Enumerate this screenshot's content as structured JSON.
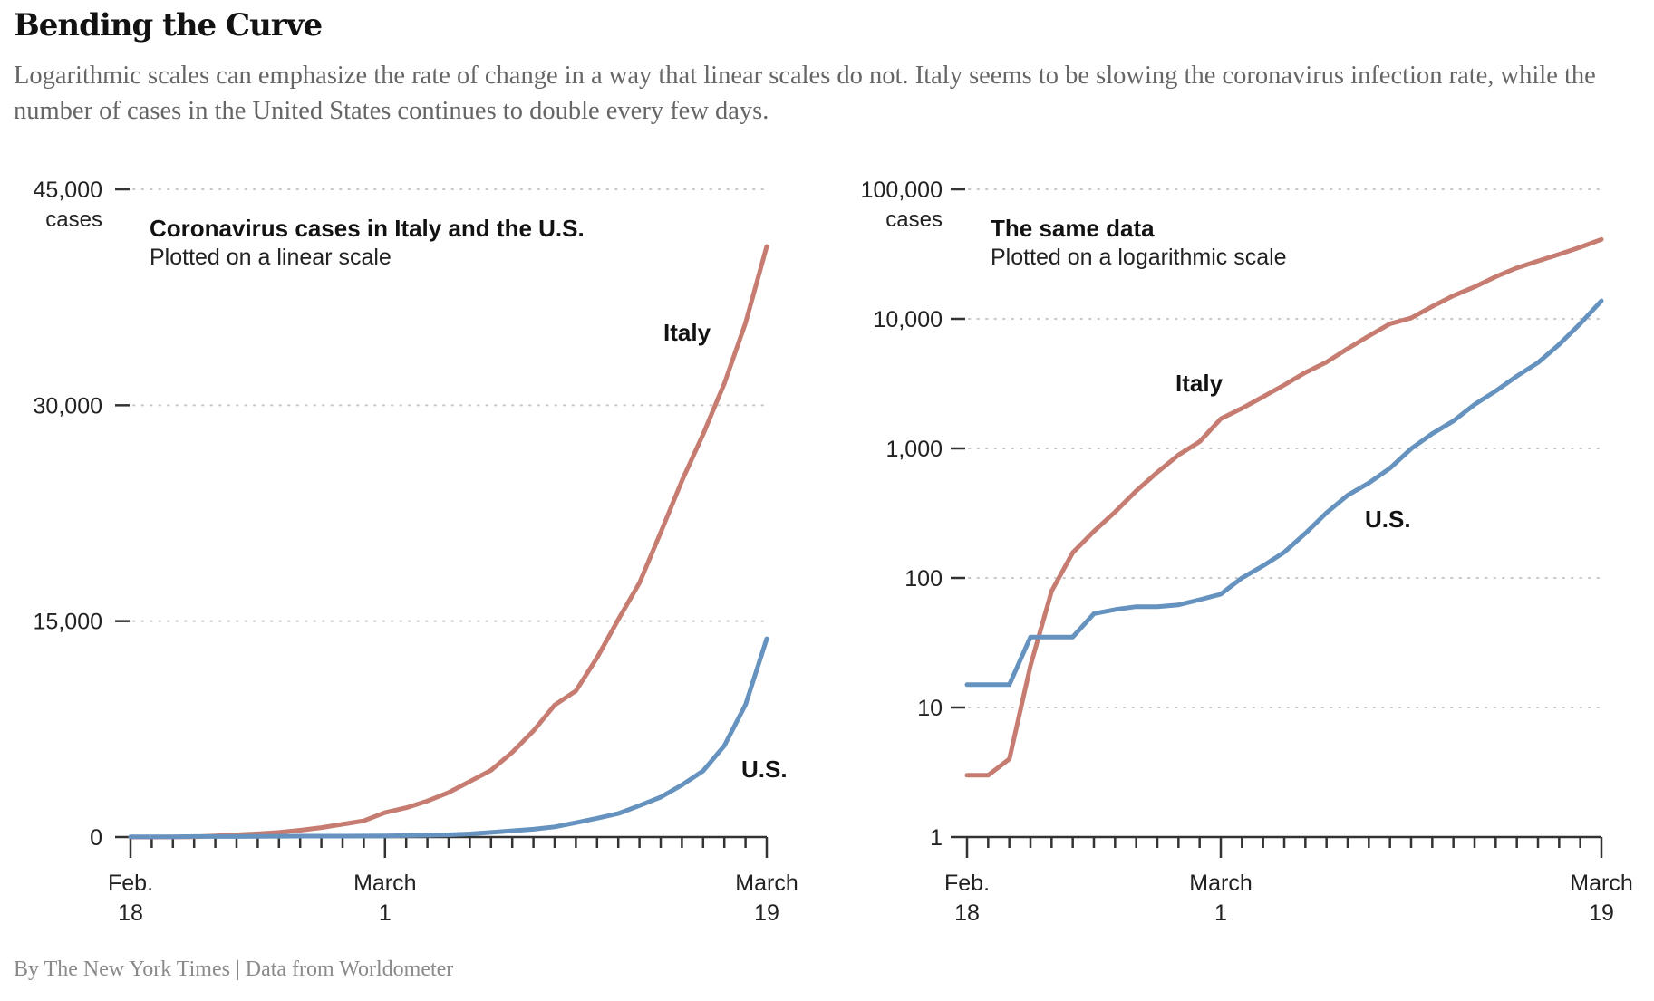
{
  "header": {
    "title": "Bending the Curve",
    "subtitle": "Logarithmic scales can emphasize the rate of change in a way that linear scales do not. Italy seems to be slowing the coronavirus infection rate, while the number of cases in the United States continues to double every few days."
  },
  "footer": {
    "credit": "By The New York Times | Data from Worldometer"
  },
  "colors": {
    "italy": "#c67c70",
    "us": "#6592be"
  },
  "chart_data": [
    {
      "type": "line",
      "scale": "linear",
      "title": "Coronavirus cases in Italy and the U.S.",
      "subtitle": "Plotted on a linear scale",
      "ylabel": "cases",
      "ylim": [
        0,
        45000
      ],
      "yticks": [
        0,
        15000,
        30000,
        45000
      ],
      "ytick_labels": [
        "0",
        "15,000",
        "30,000",
        "45,000"
      ],
      "grid": true,
      "x": [
        "Feb 18",
        "Feb 19",
        "Feb 20",
        "Feb 21",
        "Feb 22",
        "Feb 23",
        "Feb 24",
        "Feb 25",
        "Feb 26",
        "Feb 27",
        "Feb 28",
        "Feb 29",
        "Mar 1",
        "Mar 2",
        "Mar 3",
        "Mar 4",
        "Mar 5",
        "Mar 6",
        "Mar 7",
        "Mar 8",
        "Mar 9",
        "Mar 10",
        "Mar 11",
        "Mar 12",
        "Mar 13",
        "Mar 14",
        "Mar 15",
        "Mar 16",
        "Mar 17",
        "Mar 18",
        "Mar 19"
      ],
      "xticks": [
        {
          "index": 0,
          "line1": "Feb.",
          "line2": "18"
        },
        {
          "index": 12,
          "line1": "March",
          "line2": "1"
        },
        {
          "index": 30,
          "line1": "March",
          "line2": "19"
        }
      ],
      "series": [
        {
          "name": "Italy",
          "label": "Italy",
          "color_key": "italy",
          "values": [
            3,
            3,
            4,
            21,
            79,
            157,
            229,
            323,
            470,
            655,
            889,
            1128,
            1694,
            2036,
            2502,
            3089,
            3858,
            4636,
            5883,
            7375,
            9172,
            10149,
            12462,
            15113,
            17660,
            21157,
            24747,
            27980,
            31506,
            35713,
            41035
          ]
        },
        {
          "name": "U.S.",
          "label": "U.S.",
          "color_key": "us",
          "values": [
            15,
            15,
            15,
            35,
            35,
            35,
            53,
            57,
            60,
            60,
            62,
            68,
            75,
            100,
            124,
            158,
            221,
            319,
            435,
            541,
            704,
            994,
            1301,
            1630,
            2183,
            2770,
            3613,
            4596,
            6344,
            9197,
            13779
          ]
        }
      ]
    },
    {
      "type": "line",
      "scale": "log",
      "title": "The same data",
      "subtitle": "Plotted on a logarithmic scale",
      "ylabel": "cases",
      "ylim": [
        1,
        100000
      ],
      "yticks": [
        1,
        10,
        100,
        1000,
        10000,
        100000
      ],
      "ytick_labels": [
        "1",
        "10",
        "100",
        "1,000",
        "10,000",
        "100,000"
      ],
      "grid": true,
      "x": [
        "Feb 18",
        "Feb 19",
        "Feb 20",
        "Feb 21",
        "Feb 22",
        "Feb 23",
        "Feb 24",
        "Feb 25",
        "Feb 26",
        "Feb 27",
        "Feb 28",
        "Feb 29",
        "Mar 1",
        "Mar 2",
        "Mar 3",
        "Mar 4",
        "Mar 5",
        "Mar 6",
        "Mar 7",
        "Mar 8",
        "Mar 9",
        "Mar 10",
        "Mar 11",
        "Mar 12",
        "Mar 13",
        "Mar 14",
        "Mar 15",
        "Mar 16",
        "Mar 17",
        "Mar 18",
        "Mar 19"
      ],
      "xticks": [
        {
          "index": 0,
          "line1": "Feb.",
          "line2": "18"
        },
        {
          "index": 12,
          "line1": "March",
          "line2": "1"
        },
        {
          "index": 30,
          "line1": "March",
          "line2": "19"
        }
      ],
      "series": [
        {
          "name": "Italy",
          "label": "Italy",
          "color_key": "italy",
          "values": [
            3,
            3,
            4,
            21,
            79,
            157,
            229,
            323,
            470,
            655,
            889,
            1128,
            1694,
            2036,
            2502,
            3089,
            3858,
            4636,
            5883,
            7375,
            9172,
            10149,
            12462,
            15113,
            17660,
            21157,
            24747,
            27980,
            31506,
            35713,
            41035
          ]
        },
        {
          "name": "U.S.",
          "label": "U.S.",
          "color_key": "us",
          "values": [
            15,
            15,
            15,
            35,
            35,
            35,
            53,
            57,
            60,
            60,
            62,
            68,
            75,
            100,
            124,
            158,
            221,
            319,
            435,
            541,
            704,
            994,
            1301,
            1630,
            2183,
            2770,
            3613,
            4596,
            6344,
            9197,
            13779
          ]
        }
      ]
    }
  ]
}
